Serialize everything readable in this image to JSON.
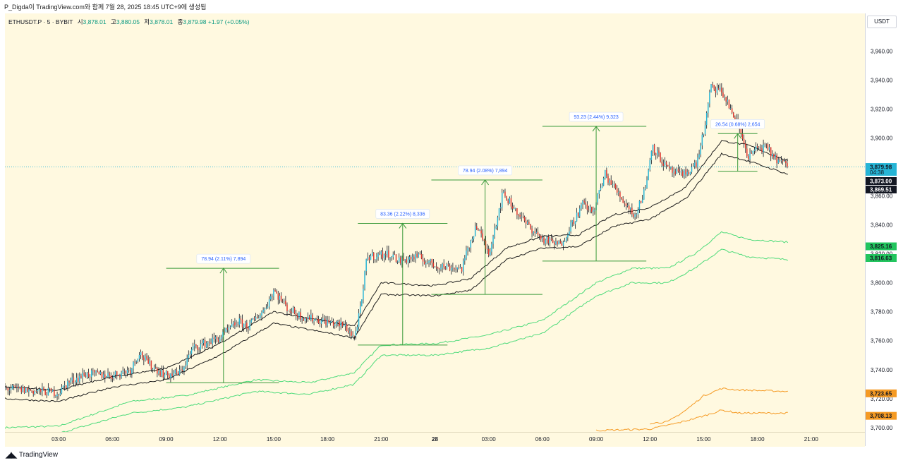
{
  "caption": "P_Digda이 TradingView.com와 함께 7월 28, 2025 18:45 UTC+9에 생성됨",
  "symbol": {
    "name": "ETHUSDT.P · 5 · BYBIT",
    "open_label": "시",
    "open": "3,878.01",
    "high_label": "고",
    "high": "3,880.05",
    "low_label": "저",
    "low": "3,878.01",
    "close_label": "종",
    "close": "3,879.98",
    "change": "+1.97 (+0.05%)"
  },
  "currency": "USDT",
  "brand": "TradingView",
  "colors": {
    "up": "#26b5d6",
    "down": "#e0352b",
    "wick": "#131722",
    "band_dark": "#1e1e1e",
    "band_green": "#4ddb7a",
    "band_orange": "#f59a23",
    "measure": "#3a9a3a",
    "bg": "#fff9e0"
  },
  "chart_data": {
    "type": "candlestick",
    "x_unit": "time (5-minute bars)",
    "x_ticks": [
      "03:00",
      "06:00",
      "09:00",
      "12:00",
      "15:00",
      "18:00",
      "21:00",
      "28",
      "03:00",
      "06:00",
      "09:00",
      "12:00",
      "15:00",
      "18:00",
      "21:00"
    ],
    "x_tick_hours": [
      3,
      6,
      9,
      12,
      15,
      18,
      21,
      24,
      27,
      30,
      33,
      36,
      39,
      42,
      45
    ],
    "x_range_hours": [
      0,
      48
    ],
    "y_ticks": [
      3700,
      3720,
      3740,
      3760,
      3780,
      3800,
      3820,
      3840,
      3860,
      3880,
      3900,
      3920,
      3940,
      3960
    ],
    "y_tick_labels": [
      "3,700.00",
      "3,720.00",
      "3,740.00",
      "3,760.00",
      "3,780.00",
      "3,800.00",
      "3,820.00",
      "3,840.00",
      "3,860.00",
      "3,880.00",
      "3,900.00",
      "3,920.00",
      "3,940.00",
      "3,960.00"
    ],
    "ylim": [
      3697,
      3986
    ],
    "price_anchors": [
      [
        0.0,
        3727
      ],
      [
        2.0,
        3725
      ],
      [
        3.0,
        3724
      ],
      [
        3.5,
        3731
      ],
      [
        4.5,
        3737
      ],
      [
        6.0,
        3736
      ],
      [
        7.0,
        3740
      ],
      [
        7.5,
        3752
      ],
      [
        8.0,
        3744
      ],
      [
        9.0,
        3736
      ],
      [
        9.8,
        3738
      ],
      [
        10.5,
        3755
      ],
      [
        12.0,
        3762
      ],
      [
        13.0,
        3773
      ],
      [
        13.6,
        3770
      ],
      [
        14.5,
        3782
      ],
      [
        15.0,
        3795
      ],
      [
        15.8,
        3782
      ],
      [
        16.5,
        3777
      ],
      [
        18.0,
        3773
      ],
      [
        19.0,
        3770
      ],
      [
        19.5,
        3762
      ],
      [
        19.9,
        3785
      ],
      [
        20.2,
        3818
      ],
      [
        21.5,
        3820
      ],
      [
        22.0,
        3815
      ],
      [
        23.0,
        3818
      ],
      [
        24.0,
        3812
      ],
      [
        25.5,
        3810
      ],
      [
        26.3,
        3840
      ],
      [
        27.0,
        3820
      ],
      [
        27.8,
        3862
      ],
      [
        29.0,
        3842
      ],
      [
        30.0,
        3830
      ],
      [
        31.0,
        3826
      ],
      [
        31.6,
        3840
      ],
      [
        32.3,
        3855
      ],
      [
        32.8,
        3848
      ],
      [
        33.5,
        3875
      ],
      [
        34.5,
        3857
      ],
      [
        35.2,
        3846
      ],
      [
        35.8,
        3868
      ],
      [
        36.1,
        3895
      ],
      [
        37.0,
        3878
      ],
      [
        37.8,
        3874
      ],
      [
        38.6,
        3882
      ],
      [
        39.1,
        3910
      ],
      [
        39.4,
        3935
      ],
      [
        40.0,
        3932
      ],
      [
        40.5,
        3920
      ],
      [
        41.0,
        3906
      ],
      [
        41.5,
        3887
      ],
      [
        42.0,
        3893
      ],
      [
        42.5,
        3893
      ],
      [
        43.0,
        3886
      ],
      [
        43.7,
        3880
      ]
    ],
    "dark_band_upper_anchors": [
      [
        0.0,
        3728
      ],
      [
        3.0,
        3726
      ],
      [
        6.0,
        3735
      ],
      [
        9.0,
        3741
      ],
      [
        12.0,
        3758
      ],
      [
        15.0,
        3780
      ],
      [
        19.5,
        3770
      ],
      [
        21.0,
        3800
      ],
      [
        24.0,
        3798
      ],
      [
        26.0,
        3803
      ],
      [
        28.0,
        3824
      ],
      [
        30.0,
        3832
      ],
      [
        32.0,
        3833
      ],
      [
        34.0,
        3847
      ],
      [
        36.0,
        3852
      ],
      [
        38.0,
        3866
      ],
      [
        40.0,
        3898
      ],
      [
        41.5,
        3895
      ],
      [
        43.7,
        3884
      ]
    ],
    "dark_band_lower_anchors": [
      [
        0.0,
        3720
      ],
      [
        3.0,
        3718
      ],
      [
        6.0,
        3728
      ],
      [
        9.0,
        3733
      ],
      [
        12.0,
        3750
      ],
      [
        15.0,
        3772
      ],
      [
        19.5,
        3762
      ],
      [
        21.0,
        3792
      ],
      [
        24.0,
        3791
      ],
      [
        26.0,
        3795
      ],
      [
        28.0,
        3816
      ],
      [
        30.0,
        3824
      ],
      [
        32.0,
        3825
      ],
      [
        34.0,
        3839
      ],
      [
        36.0,
        3844
      ],
      [
        38.0,
        3858
      ],
      [
        40.0,
        3889
      ],
      [
        41.5,
        3884
      ],
      [
        43.7,
        3875
      ]
    ],
    "green_band_upper_anchors": [
      [
        0.0,
        3700
      ],
      [
        3.0,
        3701
      ],
      [
        7.0,
        3718
      ],
      [
        10.0,
        3722
      ],
      [
        14.0,
        3733
      ],
      [
        17.0,
        3731
      ],
      [
        19.5,
        3738
      ],
      [
        21.0,
        3757
      ],
      [
        24.0,
        3758
      ],
      [
        27.0,
        3764
      ],
      [
        30.0,
        3774
      ],
      [
        33.0,
        3800
      ],
      [
        35.0,
        3810
      ],
      [
        37.0,
        3810
      ],
      [
        38.5,
        3820
      ],
      [
        40.0,
        3835
      ],
      [
        41.5,
        3830
      ],
      [
        43.7,
        3828
      ]
    ],
    "green_band_lower_anchors": [
      [
        0.0,
        3695
      ],
      [
        3.0,
        3696
      ],
      [
        7.0,
        3710
      ],
      [
        10.0,
        3714
      ],
      [
        14.0,
        3725
      ],
      [
        17.0,
        3723
      ],
      [
        19.5,
        3730
      ],
      [
        21.0,
        3750
      ],
      [
        24.0,
        3750
      ],
      [
        27.0,
        3755
      ],
      [
        30.0,
        3765
      ],
      [
        33.0,
        3791
      ],
      [
        35.0,
        3800
      ],
      [
        37.0,
        3800
      ],
      [
        38.5,
        3810
      ],
      [
        40.0,
        3823
      ],
      [
        41.5,
        3818
      ],
      [
        43.7,
        3816
      ]
    ],
    "orange_band_upper_anchors": [
      [
        36.0,
        3703
      ],
      [
        37.0,
        3704
      ],
      [
        38.0,
        3712
      ],
      [
        39.0,
        3722
      ],
      [
        40.0,
        3727
      ],
      [
        41.0,
        3726
      ],
      [
        43.7,
        3725
      ]
    ],
    "orange_band_lower_anchors": [
      [
        33.0,
        3698
      ],
      [
        36.0,
        3699
      ],
      [
        37.5,
        3703
      ],
      [
        39.0,
        3708
      ],
      [
        40.0,
        3712
      ],
      [
        41.0,
        3710
      ],
      [
        43.7,
        3710
      ]
    ],
    "measurements": [
      {
        "label": "78.94 (2.11%) 7,894",
        "x_from": 9.0,
        "x_to": 15.3,
        "arrow_x": 12.2,
        "low": 3731,
        "high": 3810
      },
      {
        "label": "83.36 (2.22%) 8,336",
        "x_from": 19.7,
        "x_to": 24.7,
        "arrow_x": 22.2,
        "low": 3757,
        "high": 3841
      },
      {
        "label": "78.94 (2.08%) 7,894",
        "x_from": 23.8,
        "x_to": 30.0,
        "arrow_x": 26.8,
        "low": 3792,
        "high": 3871
      },
      {
        "label": "93.23 (2.44%) 9,323",
        "x_from": 30.0,
        "x_to": 35.8,
        "arrow_x": 33.0,
        "low": 3815,
        "high": 3908
      },
      {
        "label": "26.54 (0.68%) 2,654",
        "x_from": 39.8,
        "x_to": 42.0,
        "arrow_x": 40.9,
        "low": 3877,
        "high": 3903
      }
    ],
    "price_tags": [
      {
        "value": 3879.98,
        "label": "3,879.98",
        "sub": "04:38",
        "color": "#26b5d6",
        "text_color": "#131722"
      },
      {
        "value": 3873.0,
        "label": "3,873.00",
        "color": "#131722",
        "text_color": "#ffffff"
      },
      {
        "value": 3869.51,
        "label": "3,869.51",
        "color": "#131722",
        "text_color": "#ffffff"
      },
      {
        "value": 3825.16,
        "label": "3,825.16",
        "color": "#22c55e",
        "text_color": "#131722"
      },
      {
        "value": 3816.63,
        "label": "3,816.63",
        "color": "#22c55e",
        "text_color": "#131722"
      },
      {
        "value": 3723.65,
        "label": "3,723.65",
        "color": "#f59a23",
        "text_color": "#131722"
      },
      {
        "value": 3708.13,
        "label": "3,708.13",
        "color": "#f59a23",
        "text_color": "#131722"
      }
    ],
    "current_price": 3879.98
  }
}
